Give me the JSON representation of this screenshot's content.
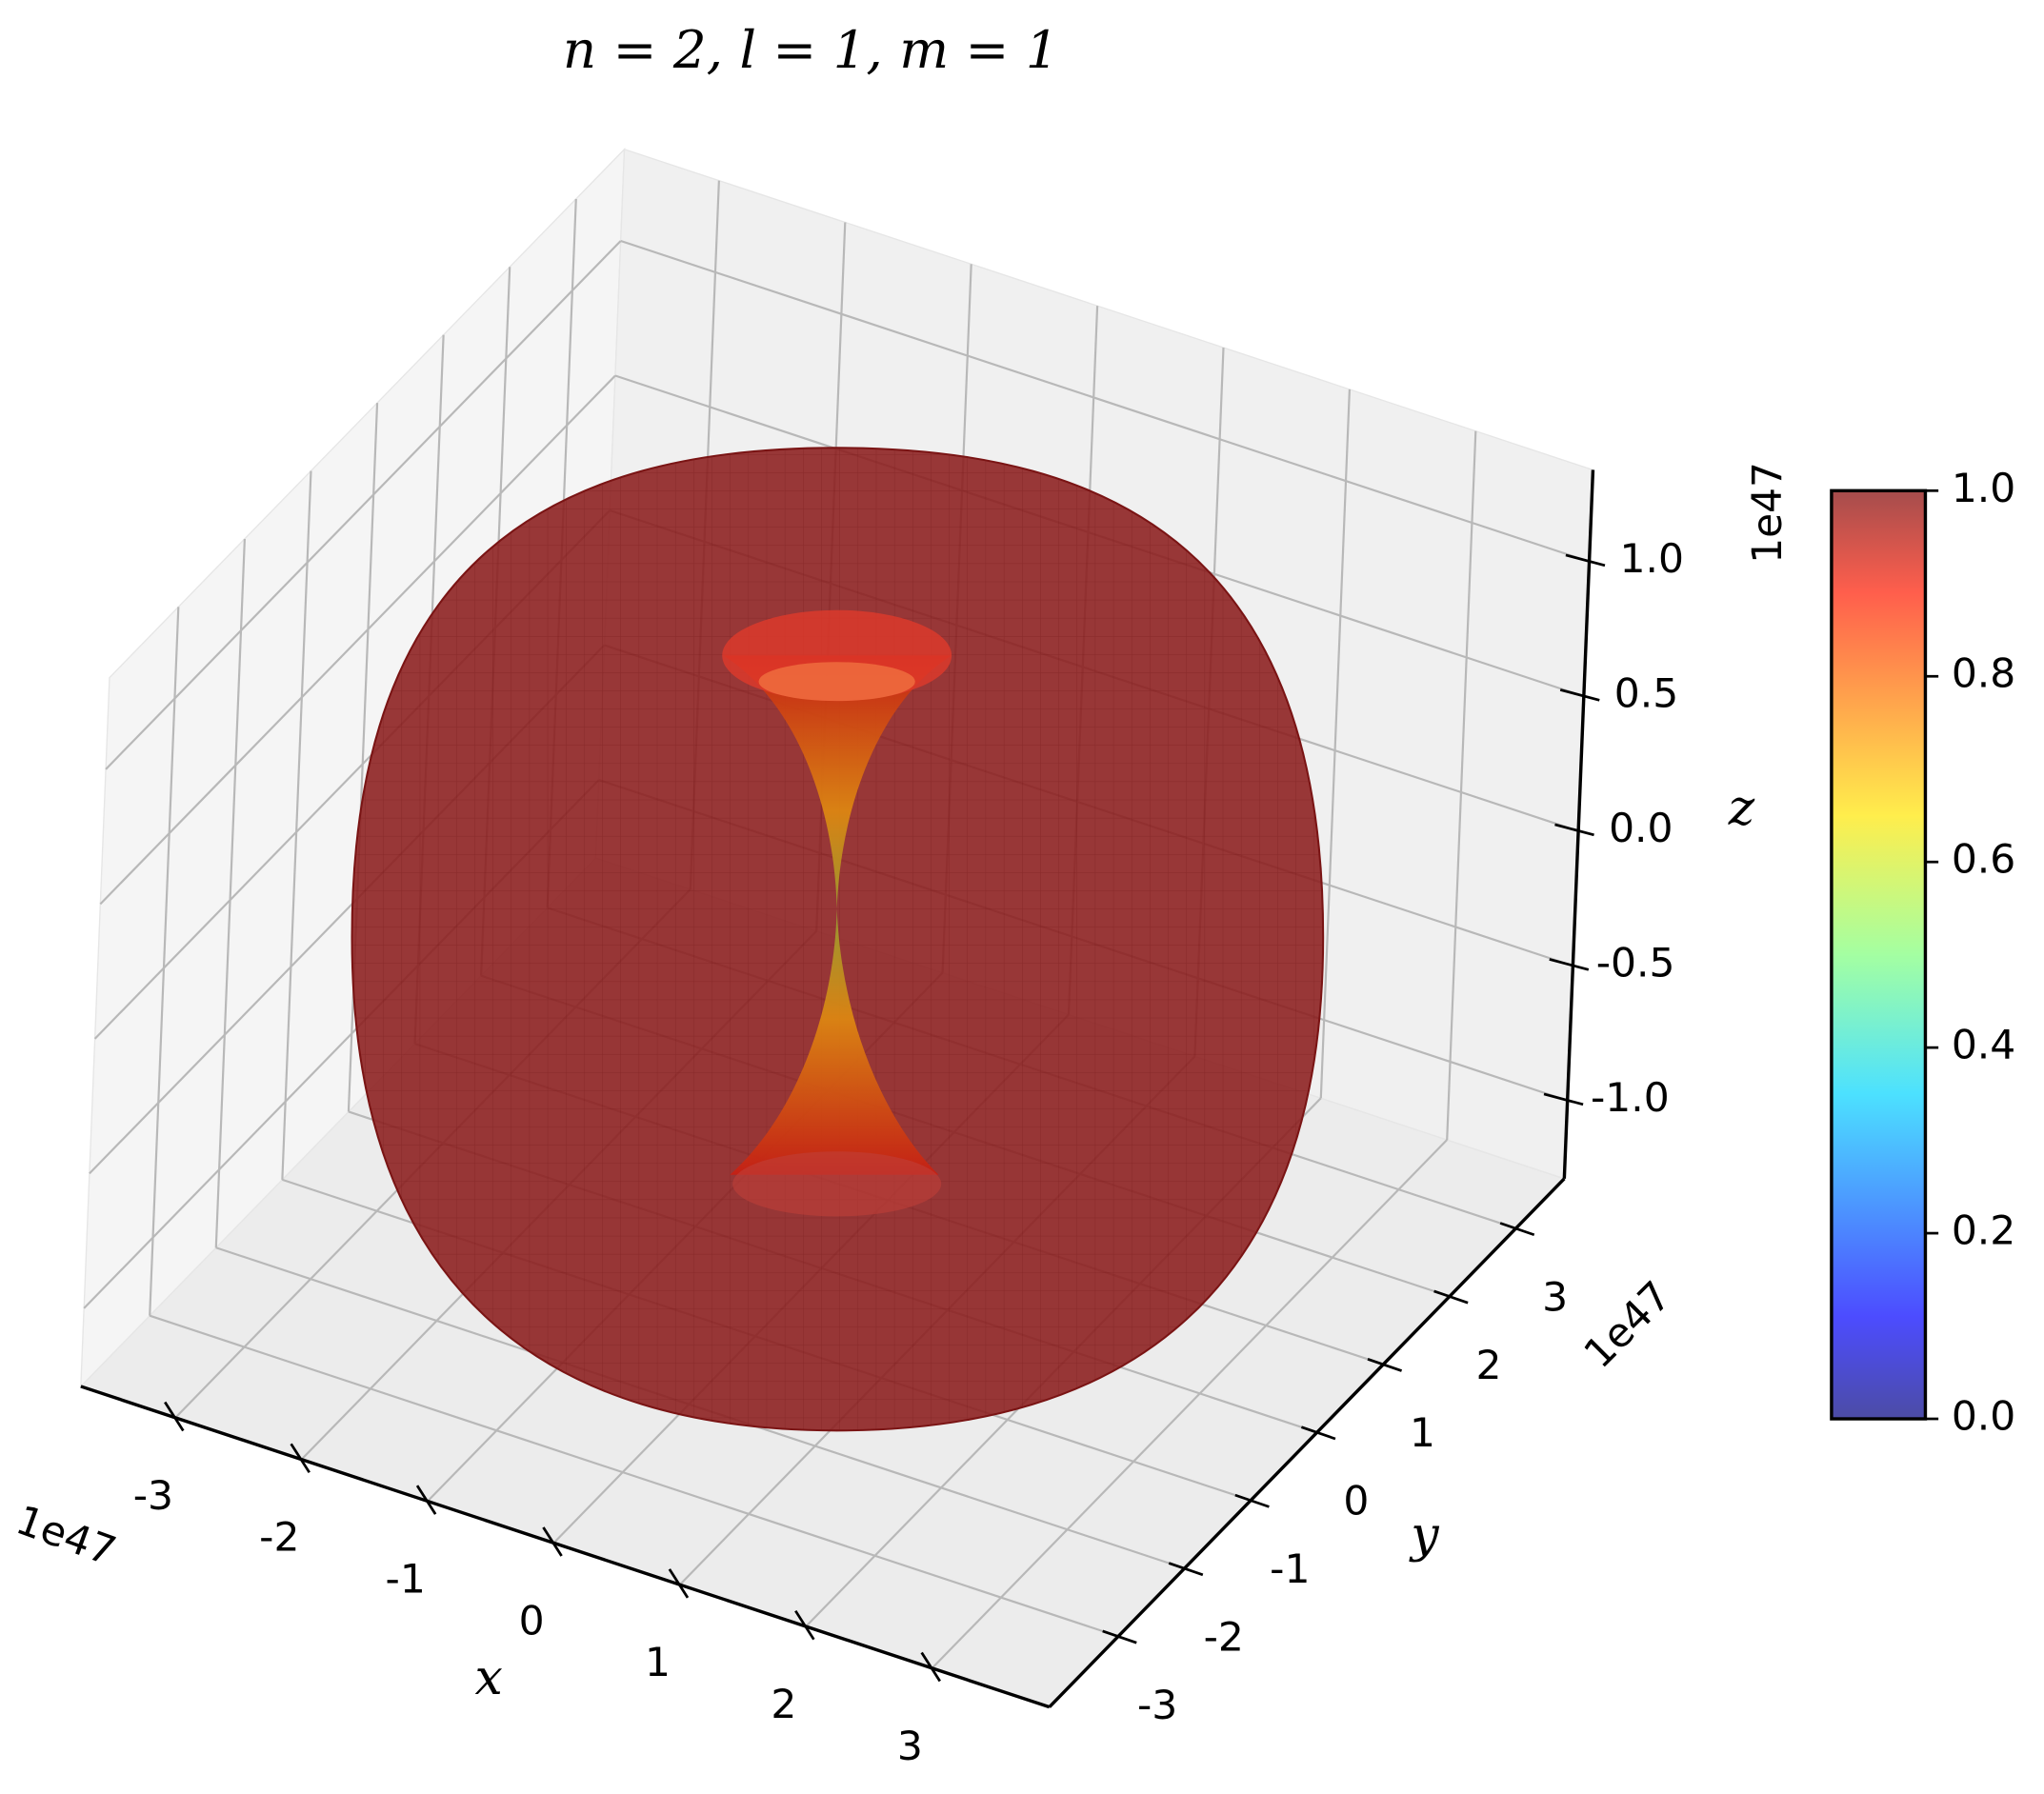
{
  "chart_data": {
    "type": "surface3d",
    "title": "n = 2, l = 1, m = 1",
    "xlabel": "x",
    "ylabel": "y",
    "zlabel": "z",
    "x_offset_label": "1e47",
    "y_offset_label": "1e47",
    "z_offset_label": "1e47",
    "xlim": [
      -3.75,
      3.93
    ],
    "ylim": [
      -4.04,
      3.73
    ],
    "zlim": [
      -1.29,
      1.34
    ],
    "xticks": [
      -3,
      -2,
      -1,
      0,
      1,
      2,
      3
    ],
    "yticks": [
      -3,
      -2,
      -1,
      0,
      1,
      2,
      3
    ],
    "zticks": [
      {
        "value": -1,
        "label": "-1.0"
      },
      -0.5,
      {
        "value": 0,
        "label": "0.0"
      },
      0.5,
      {
        "value": 1,
        "label": "1.0"
      }
    ],
    "grid": true,
    "surface_color": "#8b1c1c",
    "colorbar": {
      "cmap": "jet",
      "lim": [
        0,
        1
      ],
      "ticks": [
        {
          "value": 0,
          "label": "0.0"
        },
        0.2,
        0.4,
        0.6,
        0.8,
        {
          "value": 1,
          "label": "1.0"
        }
      ]
    }
  }
}
